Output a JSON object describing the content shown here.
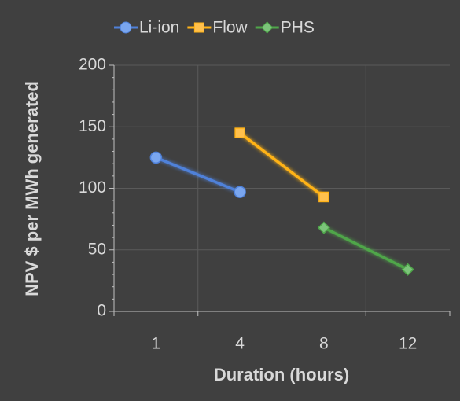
{
  "chart_data": {
    "type": "line",
    "categories": [
      "1",
      "4",
      "8",
      "12"
    ],
    "series": [
      {
        "name": "Li-ion",
        "color": "#4f81d9",
        "marker_color": "#7aa6ef",
        "marker": "circle",
        "values": [
          125,
          97,
          null,
          null
        ]
      },
      {
        "name": "Flow",
        "color": "#ffb319",
        "marker_color": "#ffc04d",
        "marker": "square",
        "values": [
          null,
          145,
          93,
          null
        ]
      },
      {
        "name": "PHS",
        "color": "#4fa64a",
        "marker_color": "#7cc47a",
        "marker": "diamond",
        "values": [
          null,
          null,
          68,
          34
        ]
      }
    ],
    "x_label": "Duration (hours)",
    "y_label": "NPV $  per MWh generated",
    "ylim": [
      0,
      200
    ],
    "yticks": [
      0,
      50,
      100,
      150,
      200
    ],
    "grid": true,
    "legend": "top"
  }
}
